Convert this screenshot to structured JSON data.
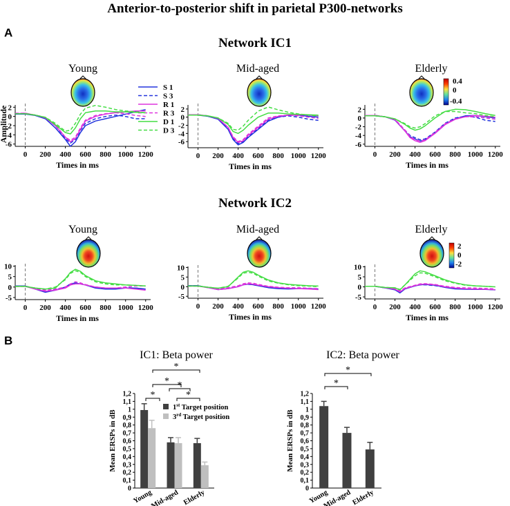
{
  "figure": {
    "title": "Anterior-to-posterior shift in parietal P300-networks",
    "panel_a": "A",
    "panel_b": "B",
    "network_ic1_title": "Network IC1",
    "network_ic2_title": "Network IC2"
  },
  "colors": {
    "blue": "#2233dd",
    "magenta": "#dd33dd",
    "green": "#44dd44",
    "bar_dark": "#404040",
    "bar_light": "#bfbfbf"
  },
  "legend": [
    {
      "label": "S 1",
      "color": "#2233dd",
      "dash": false
    },
    {
      "label": "S 3",
      "color": "#2233dd",
      "dash": true
    },
    {
      "label": "R 1",
      "color": "#dd33dd",
      "dash": false
    },
    {
      "label": "R 3",
      "color": "#dd33dd",
      "dash": true
    },
    {
      "label": "D 1",
      "color": "#44dd44",
      "dash": false
    },
    {
      "label": "D 3",
      "color": "#44dd44",
      "dash": true
    }
  ],
  "colorbar_ic1": {
    "ticks": [
      "0.4",
      "0",
      "-0.4"
    ]
  },
  "colorbar_ic2": {
    "ticks": [
      "2",
      "0",
      "-2"
    ]
  },
  "chart_data": [
    {
      "type": "line",
      "network": "Network IC1",
      "title": "Young",
      "xlabel": "Times in ms",
      "ylabel": "Amplitude",
      "xlim": [
        -100,
        1250
      ],
      "ylim": [
        -6.5,
        2.5
      ],
      "xticks": [
        0,
        200,
        400,
        600,
        800,
        1000,
        1200
      ],
      "yticks": [
        2,
        0,
        -2,
        -4,
        -6
      ],
      "x": [
        -100,
        0,
        100,
        200,
        300,
        400,
        450,
        500,
        550,
        600,
        700,
        800,
        900,
        1000,
        1100,
        1200
      ],
      "series": [
        {
          "name": "S 1",
          "values": [
            0.5,
            0.5,
            0.2,
            -0.5,
            -2.5,
            -5,
            -6.5,
            -5.5,
            -3.5,
            -2,
            -1,
            -0.5,
            0,
            0.5,
            1,
            1.5
          ]
        },
        {
          "name": "S 3",
          "values": [
            0.6,
            0.6,
            0.3,
            -0.3,
            -2,
            -4.8,
            -5.8,
            -5,
            -3,
            -1.5,
            -0.5,
            0,
            0.3,
            0,
            -0.5,
            -0.5
          ]
        },
        {
          "name": "R 1",
          "values": [
            0.6,
            0.7,
            0.3,
            -0.3,
            -2,
            -4.5,
            -5.5,
            -4.8,
            -2.8,
            -1,
            0,
            0.5,
            0.8,
            1,
            1.2,
            1.2
          ]
        },
        {
          "name": "R 3",
          "values": [
            0.7,
            0.7,
            0.3,
            -0.2,
            -1.8,
            -4.5,
            -5.2,
            -4.5,
            -2.5,
            -0.8,
            0.2,
            0.6,
            0.8,
            0.6,
            0.2,
            0
          ]
        },
        {
          "name": "D 1",
          "values": [
            0.6,
            0.6,
            0.3,
            -0.2,
            -1.8,
            -3.5,
            -3.8,
            -2.5,
            -0.5,
            0.8,
            1.2,
            1.2,
            1,
            1,
            0.9,
            0.8
          ]
        },
        {
          "name": "D 3",
          "values": [
            0.6,
            0.6,
            0.3,
            -0.2,
            -1.5,
            -3.2,
            -3,
            -1.5,
            0.5,
            1.8,
            2.4,
            2,
            1.5,
            1.2,
            1,
            0.8
          ]
        }
      ]
    },
    {
      "type": "line",
      "network": "Network IC1",
      "title": "Mid-aged",
      "xlabel": "Times in ms",
      "ylabel": "",
      "xlim": [
        -100,
        1250
      ],
      "ylim": [
        -7.5,
        3
      ],
      "xticks": [
        0,
        200,
        400,
        600,
        800,
        1000,
        1200
      ],
      "yticks": [
        2,
        0,
        -2,
        -4,
        -6
      ],
      "x": [
        -100,
        0,
        100,
        200,
        300,
        350,
        400,
        450,
        500,
        600,
        700,
        800,
        900,
        1000,
        1100,
        1200
      ],
      "series": [
        {
          "name": "S 1",
          "values": [
            0.5,
            0.5,
            0.2,
            -0.5,
            -3,
            -5.5,
            -6.8,
            -6.2,
            -5,
            -3,
            -1,
            0,
            0.5,
            0.5,
            0.2,
            0
          ]
        },
        {
          "name": "S 3",
          "values": [
            0.6,
            0.6,
            0.3,
            -0.4,
            -2.8,
            -5.2,
            -6.5,
            -6,
            -4.8,
            -2.8,
            -0.8,
            0,
            0.3,
            0,
            -0.5,
            -0.8
          ]
        },
        {
          "name": "R 1",
          "values": [
            0.6,
            0.6,
            0.3,
            -0.3,
            -2.5,
            -5,
            -6.2,
            -5.8,
            -4.5,
            -2.5,
            -0.5,
            0.2,
            0.5,
            0.6,
            0.5,
            0.3
          ]
        },
        {
          "name": "R 3",
          "values": [
            0.6,
            0.6,
            0.3,
            -0.3,
            -2.5,
            -4.8,
            -6,
            -5.5,
            -4.2,
            -2.2,
            -0.2,
            0.3,
            0.5,
            0.3,
            0,
            -0.3
          ]
        },
        {
          "name": "D 1",
          "values": [
            0.5,
            0.5,
            0.3,
            -0.2,
            -1.8,
            -3.5,
            -4,
            -3.2,
            -2,
            0,
            1,
            1,
            0.8,
            0.7,
            0.6,
            0.5
          ]
        },
        {
          "name": "D 3",
          "values": [
            0.5,
            0.5,
            0.3,
            -0.2,
            -1.5,
            -3,
            -3.2,
            -2.2,
            -0.8,
            1.5,
            2.5,
            1.8,
            1.2,
            0.8,
            0.5,
            0.3
          ]
        }
      ]
    },
    {
      "type": "line",
      "network": "Network IC1",
      "title": "Elderly",
      "xlabel": "Times in ms",
      "ylabel": "",
      "xlim": [
        -100,
        1250
      ],
      "ylim": [
        -6.5,
        3
      ],
      "xticks": [
        0,
        200,
        400,
        600,
        800,
        1000,
        1200
      ],
      "yticks": [
        2,
        0,
        -2,
        -4,
        -6
      ],
      "x": [
        -100,
        0,
        100,
        200,
        300,
        350,
        400,
        450,
        500,
        600,
        700,
        800,
        900,
        1000,
        1100,
        1200
      ],
      "series": [
        {
          "name": "S 1",
          "values": [
            0.5,
            0.5,
            0.3,
            -0.5,
            -3,
            -4.3,
            -4.8,
            -5.3,
            -5,
            -3.5,
            -1.5,
            -0.2,
            0.5,
            0.6,
            0.3,
            0
          ]
        },
        {
          "name": "S 3",
          "values": [
            0.6,
            0.6,
            0.3,
            -0.4,
            -2.8,
            -4,
            -4.5,
            -5,
            -4.8,
            -3.2,
            -1.2,
            0,
            0.4,
            0.2,
            -0.5,
            -0.8
          ]
        },
        {
          "name": "R 1",
          "values": [
            0.6,
            0.6,
            0.3,
            -0.4,
            -3,
            -4.5,
            -5.2,
            -5.6,
            -5.2,
            -3.5,
            -1.5,
            -0.3,
            0.3,
            0.6,
            0.4,
            0.2
          ]
        },
        {
          "name": "R 3",
          "values": [
            0.6,
            0.6,
            0.3,
            -0.3,
            -2.8,
            -4.2,
            -5,
            -5.3,
            -5,
            -3.3,
            -1.3,
            -0.2,
            0.3,
            0.3,
            0,
            -0.3
          ]
        },
        {
          "name": "D 1",
          "values": [
            0.5,
            0.5,
            0.3,
            -0.2,
            -1.5,
            -2.3,
            -2.8,
            -2.5,
            -1.8,
            0,
            1.5,
            2,
            1.9,
            1.5,
            1,
            0.6
          ]
        },
        {
          "name": "D 3",
          "values": [
            0.5,
            0.5,
            0.3,
            -0.2,
            -1.3,
            -2,
            -2.3,
            -2,
            -1.3,
            0.5,
            1.5,
            1.5,
            1.2,
            1,
            0.6,
            0.3
          ]
        }
      ]
    },
    {
      "type": "line",
      "network": "Network IC2",
      "title": "Young",
      "xlabel": "Times in ms",
      "ylabel": "",
      "xlim": [
        -100,
        1250
      ],
      "ylim": [
        -6,
        10.5
      ],
      "xticks": [
        0,
        200,
        400,
        600,
        800,
        1000,
        1200
      ],
      "yticks": [
        10,
        5,
        0,
        -5
      ],
      "x": [
        -100,
        0,
        100,
        200,
        300,
        400,
        450,
        500,
        550,
        600,
        700,
        800,
        900,
        1000,
        1100,
        1200
      ],
      "series": [
        {
          "name": "S 1",
          "values": [
            0.5,
            0.5,
            -1,
            -2.5,
            -1.5,
            0,
            1.5,
            2,
            1.5,
            1,
            -0.5,
            -1,
            -1,
            -0.5,
            -0.5,
            -1
          ]
        },
        {
          "name": "S 3",
          "values": [
            0.5,
            0.5,
            -0.8,
            -2,
            -1.2,
            0,
            1.2,
            1.8,
            1.5,
            1,
            0,
            -0.5,
            -0.5,
            -0.3,
            -0.5,
            -1
          ]
        },
        {
          "name": "R 1",
          "values": [
            0.3,
            0.3,
            -1,
            -2,
            -1.5,
            -0.5,
            1,
            1.5,
            1.5,
            1,
            0,
            -0.5,
            -0.5,
            -0.5,
            -1,
            -1.5
          ]
        },
        {
          "name": "R 3",
          "values": [
            0.3,
            0.3,
            -0.5,
            -1.5,
            -1,
            0,
            1.5,
            2.5,
            2,
            1.2,
            0,
            -0.5,
            -0.5,
            0,
            0.5,
            0.5
          ]
        },
        {
          "name": "D 1",
          "values": [
            0.3,
            0.3,
            -0.5,
            -1,
            -0.5,
            4,
            7,
            8.5,
            7.5,
            5.5,
            3,
            2,
            1.5,
            1,
            0.8,
            0.5
          ]
        },
        {
          "name": "D 3",
          "values": [
            0.3,
            0.3,
            -0.5,
            -1,
            0,
            3.5,
            6.5,
            7.8,
            7,
            5,
            2.5,
            1.5,
            1,
            1,
            0.8,
            0.5
          ]
        }
      ]
    },
    {
      "type": "line",
      "network": "Network IC2",
      "title": "Mid-aged",
      "xlabel": "Times in ms",
      "ylabel": "",
      "xlim": [
        -100,
        1250
      ],
      "ylim": [
        -6,
        10.5
      ],
      "xticks": [
        0,
        200,
        400,
        600,
        800,
        1000,
        1200
      ],
      "yticks": [
        10,
        5,
        0,
        -5
      ],
      "x": [
        -100,
        0,
        100,
        200,
        300,
        400,
        450,
        500,
        550,
        600,
        700,
        800,
        900,
        1000,
        1100,
        1200
      ],
      "series": [
        {
          "name": "S 1",
          "values": [
            0.5,
            0.5,
            -0.5,
            -1.5,
            -1,
            0,
            1,
            1.3,
            1,
            0.5,
            -0.5,
            -1,
            -1.2,
            -1,
            -1,
            -1.2
          ]
        },
        {
          "name": "S 3",
          "values": [
            0.5,
            0.5,
            -0.5,
            -1.3,
            -0.8,
            0.2,
            1,
            1.2,
            1,
            0.5,
            -0.3,
            -0.8,
            -1,
            -0.8,
            -1,
            -1.2
          ]
        },
        {
          "name": "R 1",
          "values": [
            0.3,
            0.3,
            -0.5,
            -1.5,
            -1,
            0,
            1,
            1.5,
            1.3,
            0.8,
            0,
            -0.5,
            -0.8,
            -1,
            -1.2,
            -1.5
          ]
        },
        {
          "name": "R 3",
          "values": [
            0.3,
            0.3,
            -0.3,
            -1,
            -0.5,
            0.5,
            1.5,
            2,
            1.8,
            1.2,
            0.2,
            -0.3,
            -0.5,
            -0.5,
            -0.8,
            -1
          ]
        },
        {
          "name": "D 1",
          "values": [
            0.3,
            0.3,
            -0.3,
            -0.8,
            0,
            5,
            7.5,
            8.2,
            7.5,
            6,
            3.5,
            2,
            1.2,
            0.8,
            0.5,
            0.3
          ]
        },
        {
          "name": "D 3",
          "values": [
            0.3,
            0.3,
            -0.3,
            -0.8,
            0.2,
            4.5,
            7,
            7.5,
            7,
            5.5,
            3,
            1.8,
            1,
            0.5,
            0.3,
            0
          ]
        }
      ]
    },
    {
      "type": "line",
      "network": "Network IC2",
      "title": "Elderly",
      "xlabel": "Times in ms",
      "ylabel": "",
      "xlim": [
        -100,
        1250
      ],
      "ylim": [
        -6,
        10.5
      ],
      "xticks": [
        0,
        200,
        400,
        600,
        800,
        1000,
        1200
      ],
      "yticks": [
        10,
        5,
        0,
        -5
      ],
      "x": [
        -100,
        0,
        100,
        200,
        250,
        300,
        400,
        450,
        500,
        600,
        700,
        800,
        900,
        1000,
        1100,
        1200
      ],
      "series": [
        {
          "name": "S 1",
          "values": [
            0.3,
            0.3,
            -0.5,
            -1.5,
            -3,
            -1,
            0.5,
            1,
            1.2,
            0.8,
            -0.3,
            -1,
            -1.2,
            -1.3,
            -1.3,
            -1.5
          ]
        },
        {
          "name": "S 3",
          "values": [
            0.3,
            0.3,
            -0.5,
            -1.2,
            -2.5,
            -0.8,
            0.5,
            1,
            1,
            0.6,
            -0.2,
            -0.8,
            -1,
            -1,
            -1.2,
            -1.5
          ]
        },
        {
          "name": "R 1",
          "values": [
            0.3,
            0.3,
            -0.4,
            -1.2,
            -2.5,
            -0.8,
            0.6,
            1.2,
            1.4,
            1,
            0,
            -0.6,
            -0.9,
            -1.1,
            -1.2,
            -1.4
          ]
        },
        {
          "name": "R 3",
          "values": [
            0.3,
            0.3,
            -0.3,
            -1,
            -2,
            -0.5,
            0.8,
            1.5,
            1.6,
            1.2,
            0.3,
            -0.3,
            -0.5,
            -0.6,
            -0.8,
            -1
          ]
        },
        {
          "name": "D 1",
          "values": [
            0.3,
            0.3,
            -0.3,
            -0.5,
            -1.5,
            1,
            6.5,
            8,
            7.5,
            5.5,
            3.5,
            2,
            1,
            0.5,
            0.3,
            0
          ]
        },
        {
          "name": "D 3",
          "values": [
            0.3,
            0.3,
            -0.3,
            -0.5,
            -1.3,
            1,
            5.5,
            7,
            6.8,
            5,
            3,
            1.8,
            0.8,
            0.5,
            0.3,
            0
          ]
        }
      ]
    },
    {
      "type": "bar",
      "title": "IC1: Beta power",
      "ylabel": "Mean ERSPs in dB",
      "ylim": [
        0,
        1.2
      ],
      "yticks": [
        "0",
        "0,1",
        "0,2",
        "0,3",
        "0,4",
        "0,5",
        "0,6",
        "0,7",
        "0,8",
        "0,9",
        "1",
        "1,1",
        "1,2"
      ],
      "categories": [
        "Young",
        "Mid-aged",
        "Elderly"
      ],
      "series": [
        {
          "name": "1st Target position",
          "values": [
            0.99,
            0.58,
            0.57
          ],
          "errors": [
            0.08,
            0.06,
            0.06
          ]
        },
        {
          "name": "3rd Target position",
          "values": [
            0.76,
            0.57,
            0.29
          ],
          "errors": [
            0.1,
            0.07,
            0.04
          ]
        }
      ],
      "legend_labels": [
        {
          "base": "1",
          "sup": "st",
          "rest": " Target position"
        },
        {
          "base": "3",
          "sup": "rd",
          "rest": " Target position"
        }
      ],
      "significance": "*"
    },
    {
      "type": "bar",
      "title": "IC2: Beta power",
      "ylabel": "Mean ERSPs in dB",
      "ylim": [
        0,
        1.2
      ],
      "yticks": [
        "0",
        "0,1",
        "0,2",
        "0,3",
        "0,4",
        "0,5",
        "0,6",
        "0,7",
        "0,8",
        "0,9",
        "1",
        "1,1",
        "1,2"
      ],
      "categories": [
        "Young",
        "Mid-aged",
        "Elderly"
      ],
      "series": [
        {
          "values": [
            1.04,
            0.7,
            0.49
          ],
          "errors": [
            0.06,
            0.07,
            0.09
          ]
        }
      ],
      "significance": "*"
    }
  ]
}
